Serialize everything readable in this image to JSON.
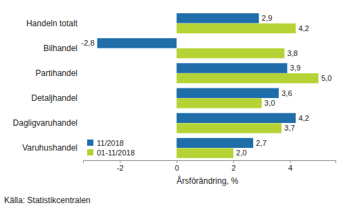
{
  "chart_data": {
    "type": "bar",
    "orientation": "horizontal",
    "categories": [
      "Handeln totalt",
      "Bilhandel",
      "Partihandel",
      "Detaljhandel",
      "Dagligvaruhandel",
      "Varuhushandel"
    ],
    "series": [
      {
        "name": "11/2018",
        "color": "#1f6eaa",
        "values": [
          2.9,
          -2.8,
          3.9,
          3.6,
          4.2,
          2.7
        ],
        "value_labels": [
          "2,9",
          "-2,8",
          "3,9",
          "3,6",
          "4,2",
          "2,7"
        ]
      },
      {
        "name": "01-11/2018",
        "color": "#b5d334",
        "values": [
          4.2,
          3.8,
          5.0,
          3.0,
          3.7,
          2.0
        ],
        "value_labels": [
          "4,2",
          "3,8",
          "5,0",
          "3,0",
          "3,7",
          "2,0"
        ]
      }
    ],
    "xlabel": "Årsförändring, %",
    "source": "Källa: Statistikcentralen",
    "xlim": [
      -3.3,
      5.6
    ],
    "xticks": [
      -2,
      0,
      2,
      4
    ],
    "grid": false,
    "legend": "bottom-left",
    "data_labels": true
  }
}
